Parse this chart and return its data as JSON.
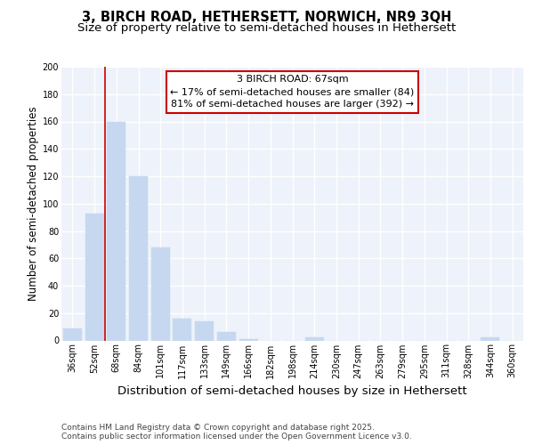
{
  "title1": "3, BIRCH ROAD, HETHERSETT, NORWICH, NR9 3QH",
  "title2": "Size of property relative to semi-detached houses in Hethersett",
  "xlabel": "Distribution of semi-detached houses by size in Hethersett",
  "ylabel": "Number of semi-detached properties",
  "categories": [
    "36sqm",
    "52sqm",
    "68sqm",
    "84sqm",
    "101sqm",
    "117sqm",
    "133sqm",
    "149sqm",
    "166sqm",
    "182sqm",
    "198sqm",
    "214sqm",
    "230sqm",
    "247sqm",
    "263sqm",
    "279sqm",
    "295sqm",
    "311sqm",
    "328sqm",
    "344sqm",
    "360sqm"
  ],
  "values": [
    9,
    93,
    160,
    120,
    68,
    16,
    14,
    6,
    1,
    0,
    0,
    2,
    0,
    0,
    0,
    0,
    0,
    0,
    0,
    2,
    0
  ],
  "bar_color": "#c5d8f0",
  "bar_edge_color": "#c5d8f0",
  "vline_x_index": 2,
  "vline_color": "#cc0000",
  "ann_line1": "3 BIRCH ROAD: 67sqm",
  "ann_line2": "← 17% of semi-detached houses are smaller (84)",
  "ann_line3": "81% of semi-detached houses are larger (392) →",
  "annotation_box_color": "#cc0000",
  "annotation_box_bg": "#ffffff",
  "ylim": [
    0,
    200
  ],
  "yticks": [
    0,
    20,
    40,
    60,
    80,
    100,
    120,
    140,
    160,
    180,
    200
  ],
  "plot_bg_color": "#eef2fa",
  "fig_bg_color": "#ffffff",
  "footer_text": "Contains HM Land Registry data © Crown copyright and database right 2025.\nContains public sector information licensed under the Open Government Licence v3.0.",
  "title_fontsize": 10.5,
  "subtitle_fontsize": 9.5,
  "xlabel_fontsize": 9.5,
  "ylabel_fontsize": 8.5,
  "tick_fontsize": 7,
  "annotation_fontsize": 8,
  "footer_fontsize": 6.5,
  "grid_color": "#ffffff",
  "grid_linewidth": 1.0
}
